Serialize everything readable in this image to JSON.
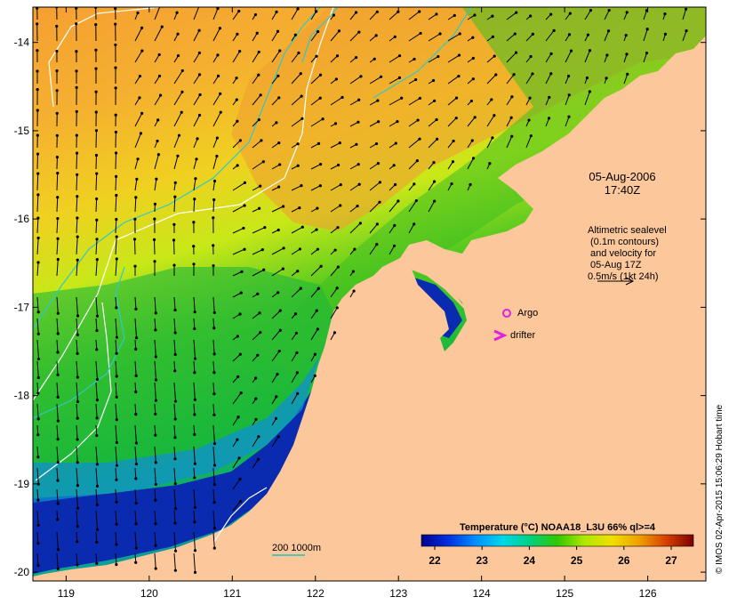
{
  "map": {
    "lon_ticks": [
      "119",
      "120",
      "121",
      "122",
      "123",
      "124",
      "125",
      "126"
    ],
    "lat_ticks": [
      "-14",
      "-15",
      "-16",
      "-17",
      "-18",
      "-19",
      "-20"
    ],
    "lon_range": [
      118.6,
      126.7
    ],
    "lat_range": [
      -13.6,
      -20.1
    ]
  },
  "annotations": {
    "date": "05-Aug-2006",
    "time": "17:40Z",
    "sealevel_lines": [
      "Altimetric sealevel",
      "(0.1m contours)",
      "and velocity for",
      "05-Aug 17Z",
      "0.5m/s (1kt 24h)"
    ],
    "argo_label": "Argo",
    "drifter_label": "drifter",
    "argo_color": "#e020e0",
    "drifter_color": "#e020e0"
  },
  "colorbar": {
    "title": "Temperature (°C) NOAA18_L3U 66% ql>=4",
    "ticks": [
      "22",
      "23",
      "24",
      "25",
      "26",
      "27"
    ],
    "colors": [
      "#00008f",
      "#0050ff",
      "#00c8ff",
      "#00d070",
      "#38c800",
      "#c8f000",
      "#f0d800",
      "#f0a000",
      "#e06000",
      "#b01000",
      "#7a0000"
    ]
  },
  "legend": {
    "isobath_label": "200  1000m",
    "isobath_color": "#20c0c0"
  },
  "credit": "© IMOS 02-Apr-2015 15:06:29 Hobart time",
  "colors": {
    "land": "#fcc79a",
    "cold": "#001a8f",
    "warm": "#f5a030",
    "isobath": "#30c8c8",
    "contour": "#ffffff"
  }
}
